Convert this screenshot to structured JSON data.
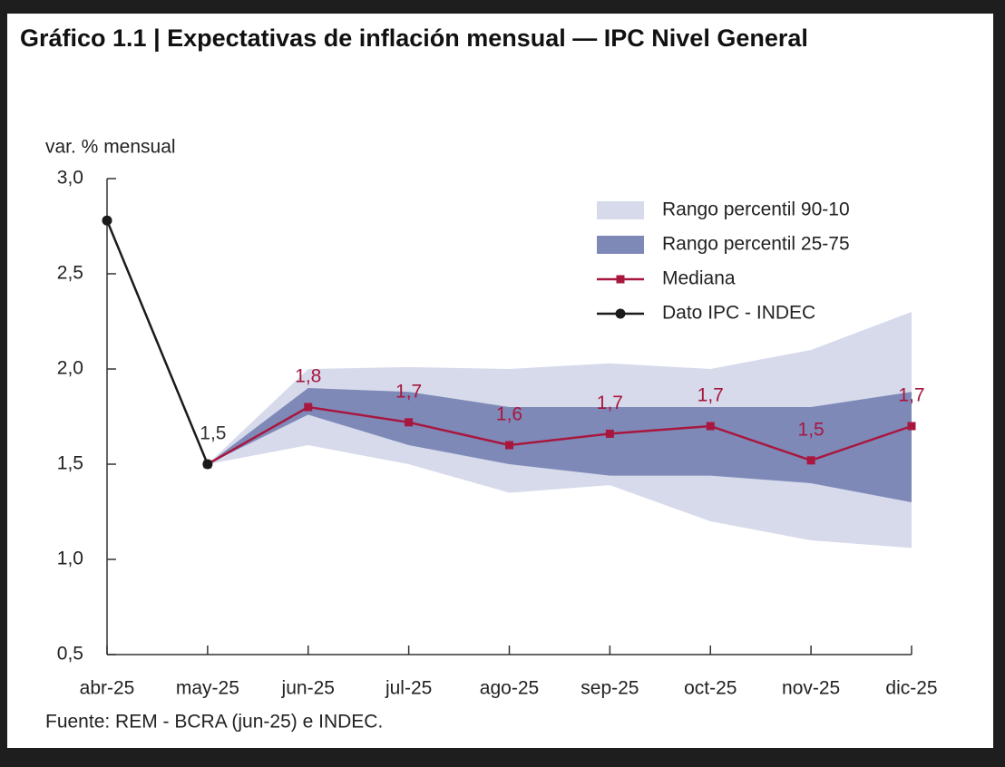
{
  "chart_data": {
    "type": "line",
    "title": "Gráfico 1.1 | Expectativas de inflación mensual — IPC Nivel General",
    "y_label": "var. % mensual",
    "source": "Fuente: REM - BCRA (jun-25) e INDEC.",
    "categories": [
      "abr-25",
      "may-25",
      "jun-25",
      "jul-25",
      "ago-25",
      "sep-25",
      "oct-25",
      "nov-25",
      "dic-25"
    ],
    "ylim": [
      0.5,
      3.0
    ],
    "yticks": [
      {
        "value": 0.5,
        "label": "0,5"
      },
      {
        "value": 1.0,
        "label": "1,0"
      },
      {
        "value": 1.5,
        "label": "1,5"
      },
      {
        "value": 2.0,
        "label": "2,0"
      },
      {
        "value": 2.5,
        "label": "2,5"
      },
      {
        "value": 3.0,
        "label": "3,0"
      }
    ],
    "legend": "upper right",
    "bands": [
      {
        "name": "Rango percentil 90-10",
        "color": "#d6daeb",
        "lower": [
          null,
          1.5,
          1.6,
          1.5,
          1.35,
          1.39,
          1.2,
          1.1,
          1.06
        ],
        "upper": [
          null,
          1.5,
          2.0,
          2.01,
          2.0,
          2.03,
          2.0,
          2.1,
          2.3
        ]
      },
      {
        "name": "Rango percentil 25-75",
        "color": "#7e89b8",
        "lower": [
          null,
          1.5,
          1.76,
          1.6,
          1.5,
          1.44,
          1.44,
          1.4,
          1.3
        ],
        "upper": [
          null,
          1.5,
          1.9,
          1.88,
          1.8,
          1.8,
          1.8,
          1.8,
          1.88
        ]
      }
    ],
    "series": [
      {
        "name": "Mediana",
        "color": "#a8173e",
        "marker": "square",
        "values": [
          null,
          1.5,
          1.8,
          1.72,
          1.6,
          1.66,
          1.7,
          1.52,
          1.7
        ],
        "value_labels": [
          null,
          null,
          "1,8",
          "1,7",
          "1,6",
          "1,7",
          "1,7",
          "1,5",
          "1,7"
        ]
      },
      {
        "name": "Dato IPC - INDEC",
        "color": "#1a1a1a",
        "marker": "circle",
        "values": [
          2.78,
          1.5,
          null,
          null,
          null,
          null,
          null,
          null,
          null
        ],
        "value_labels": [
          null,
          "1,5",
          null,
          null,
          null,
          null,
          null,
          null,
          null
        ]
      }
    ]
  }
}
